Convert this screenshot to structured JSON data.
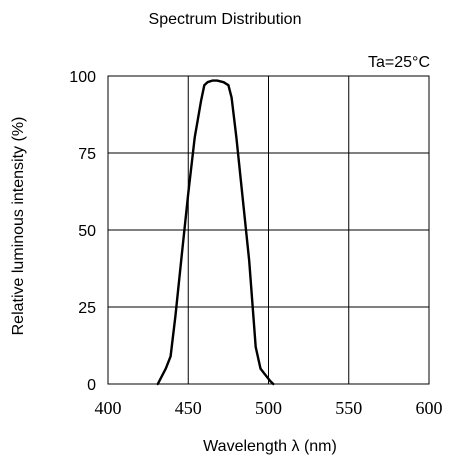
{
  "chart_data": {
    "type": "line",
    "title": "Spectrum Distribution",
    "annotation": "Ta=25°C",
    "xlabel": "Wavelength  λ (nm)",
    "ylabel": "Relative luminous intensity (%)",
    "xlim": [
      400,
      600
    ],
    "ylim": [
      0,
      100
    ],
    "xticks": [
      "400",
      "450",
      "500",
      "550",
      "600"
    ],
    "yticks": [
      "0",
      "25",
      "50",
      "75",
      "100"
    ],
    "grid": true,
    "series": [
      {
        "x": [
          431,
          433,
          436,
          439,
          442,
          446,
          450,
          454,
          458,
          460,
          462,
          465,
          468,
          472,
          475,
          477,
          480,
          484,
          488,
          492,
          495,
          498,
          501,
          503
        ],
        "y": [
          0,
          2,
          5,
          9,
          22,
          42,
          62,
          80,
          92,
          97,
          98,
          98.5,
          98.5,
          98,
          97,
          93,
          80,
          60,
          40,
          12,
          5,
          3,
          1,
          0
        ]
      }
    ]
  }
}
